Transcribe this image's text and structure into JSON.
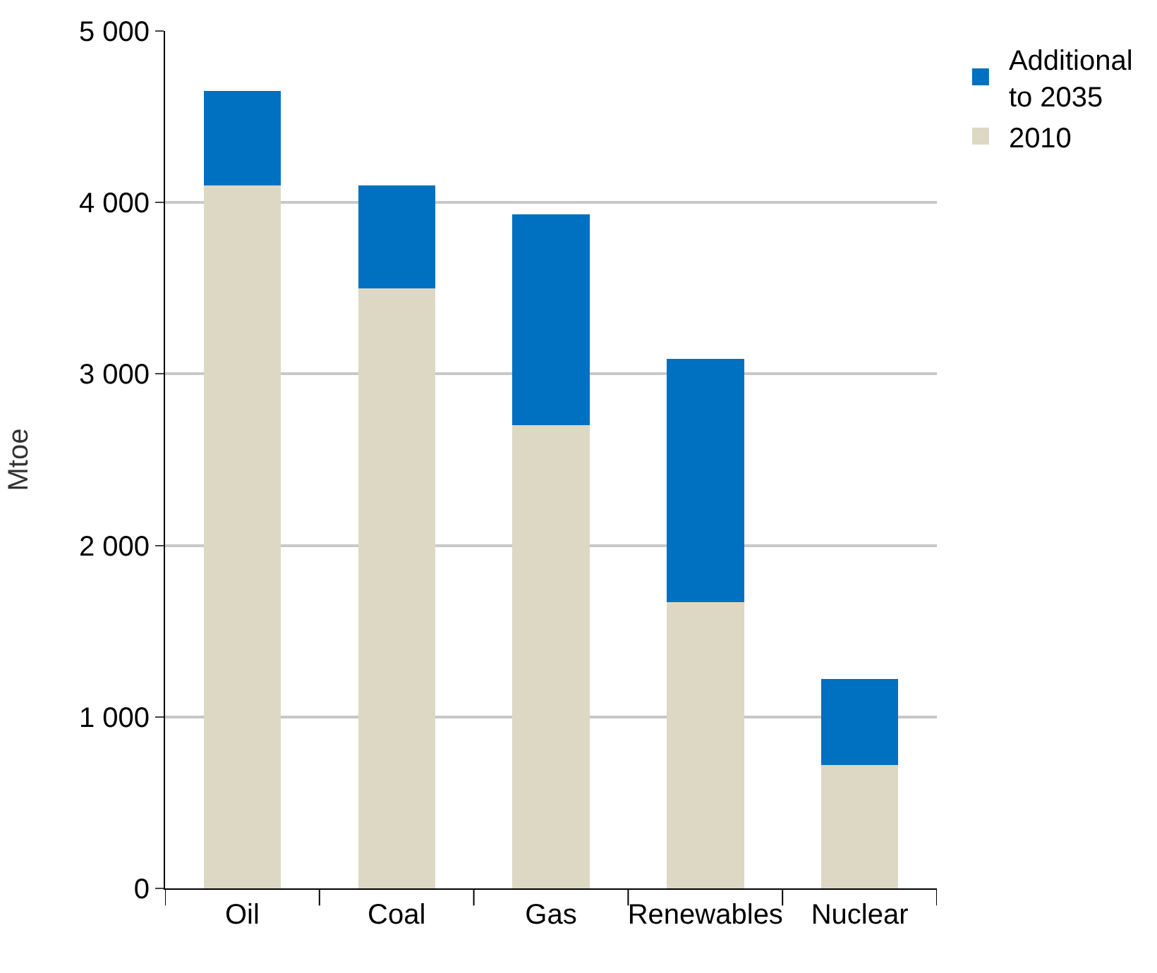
{
  "chart_data": {
    "type": "bar",
    "ylabel": "Mtoe",
    "categories": [
      "Oil",
      "Coal",
      "Gas",
      "Renewables",
      "Nuclear"
    ],
    "stacked": true,
    "series": [
      {
        "name": "2010",
        "color": "#ddd8c4",
        "values": [
          4100,
          3500,
          2700,
          1670,
          720
        ]
      },
      {
        "name": "Additional to 2035",
        "color": "#0070c0",
        "values": [
          550,
          600,
          1230,
          1420,
          500
        ]
      }
    ],
    "ylim": [
      0,
      5000
    ],
    "yticks": [
      {
        "value": 0,
        "label": "0"
      },
      {
        "value": 1000,
        "label": "1 000"
      },
      {
        "value": 2000,
        "label": "2 000"
      },
      {
        "value": 3000,
        "label": "3 000"
      },
      {
        "value": 4000,
        "label": "4 000"
      },
      {
        "value": 5000,
        "label": "5 000"
      }
    ],
    "grid": "y",
    "legend": "top right"
  }
}
